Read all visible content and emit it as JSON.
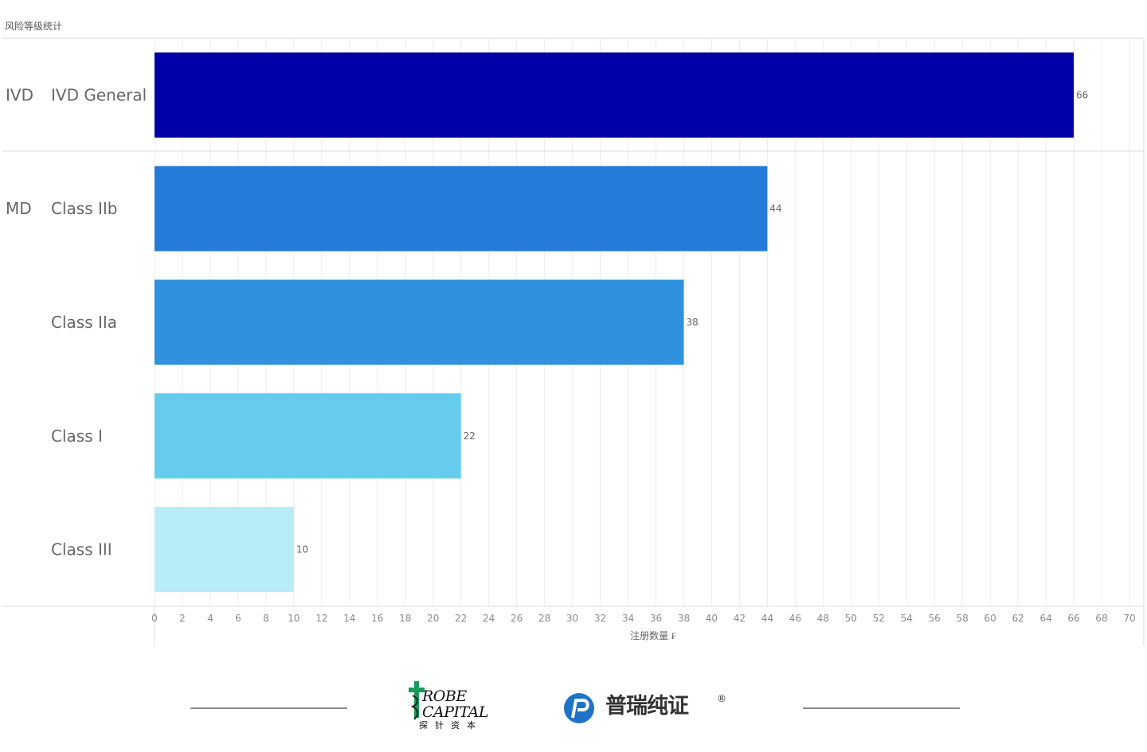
{
  "chart_data": {
    "type": "bar",
    "orientation": "horizontal",
    "title": "风险等级统计",
    "xlabel": "注册数量 ₣",
    "ylabel": "",
    "xlim": [
      0,
      70
    ],
    "x_ticks": [
      0,
      2,
      4,
      6,
      8,
      10,
      12,
      14,
      16,
      18,
      20,
      22,
      24,
      26,
      28,
      30,
      32,
      34,
      36,
      38,
      40,
      42,
      44,
      46,
      48,
      50,
      52,
      54,
      56,
      58,
      60,
      62,
      64,
      66,
      68,
      70
    ],
    "grid": true,
    "bars": [
      {
        "group": "IVD",
        "category": "IVD General",
        "value": 66,
        "color": "#0000a8"
      },
      {
        "group": "MD",
        "category": "Class IIb",
        "value": 44,
        "color": "#257bd8"
      },
      {
        "group": "",
        "category": "Class IIa",
        "value": 38,
        "color": "#2e92de"
      },
      {
        "group": "",
        "category": "Class I",
        "value": 22,
        "color": "#66ccee"
      },
      {
        "group": "",
        "category": "Class III",
        "value": 10,
        "color": "#b8ecf8"
      }
    ]
  },
  "footer": {
    "probe_logo": {
      "line1": "ROBE",
      "line2": "CAPITAL",
      "chinese": "探针资本",
      "icon": "probe-cross-icon",
      "icon_color": "#1a9a5a"
    },
    "pr_logo": {
      "text": "普瑞纯证",
      "registered": "®",
      "icon": "pr-circle-icon",
      "icon_color": "#1e73c8"
    }
  }
}
